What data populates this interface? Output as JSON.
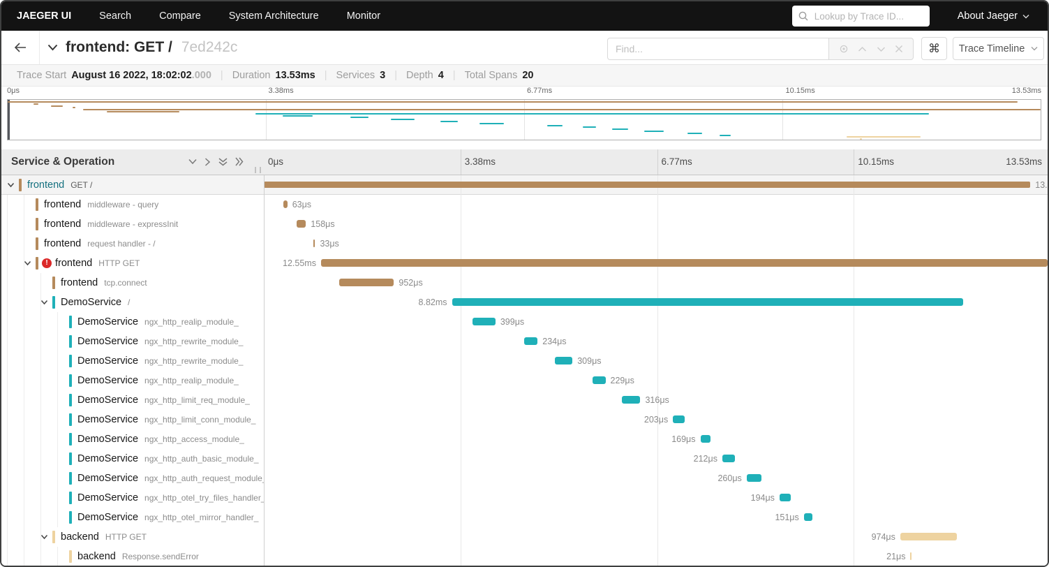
{
  "nav": {
    "brand": "JAEGER UI",
    "items": [
      "Search",
      "Compare",
      "System Architecture",
      "Monitor"
    ],
    "lookup_placeholder": "Lookup by Trace ID...",
    "about_label": "About Jaeger"
  },
  "header": {
    "title": "frontend: GET /",
    "trace_id": "7ed242c",
    "find_placeholder": "Find...",
    "find_tools_icons": [
      "locate-icon",
      "prev-match-icon",
      "next-match-icon",
      "clear-icon"
    ],
    "keyboard_shortcut_button": "⌘",
    "view_selector": "Trace Timeline"
  },
  "summary": {
    "items": [
      {
        "label": "Trace Start",
        "value": "August 16 2022, 18:02:02",
        "suffix": ".000"
      },
      {
        "label": "Duration",
        "value": "13.53ms"
      },
      {
        "label": "Services",
        "value": "3"
      },
      {
        "label": "Depth",
        "value": "4"
      },
      {
        "label": "Total Spans",
        "value": "20"
      }
    ]
  },
  "timeline": {
    "left_header": "Service & Operation",
    "ticks": [
      "0μs",
      "3.38ms",
      "6.77ms",
      "10.15ms",
      "13.53ms"
    ],
    "tick_pcts": [
      0,
      25,
      50,
      75,
      100
    ]
  },
  "colors": {
    "frontend": "#b58a5c",
    "demo": "#1fb0b8",
    "backend": "#eed3a0",
    "error": "#db2828",
    "root_service_text": "#14707f"
  },
  "spans": [
    {
      "service": "frontend",
      "operation": "GET /",
      "level": 0,
      "expander": true,
      "error": false,
      "color": "frontend",
      "start": 0,
      "width": 97.8,
      "duration": "13.",
      "side": "right",
      "root": true
    },
    {
      "service": "frontend",
      "operation": "middleware - query",
      "level": 1,
      "expander": false,
      "error": false,
      "color": "frontend",
      "start": 2.5,
      "width": 0.5,
      "duration": "63μs",
      "side": "right"
    },
    {
      "service": "frontend",
      "operation": "middleware - expressInit",
      "level": 1,
      "expander": false,
      "error": false,
      "color": "frontend",
      "start": 4.2,
      "width": 1.17,
      "duration": "158μs",
      "side": "right"
    },
    {
      "service": "frontend",
      "operation": "request handler - /",
      "level": 1,
      "expander": false,
      "error": false,
      "color": "frontend",
      "start": 6.3,
      "width": 0.24,
      "duration": "33μs",
      "side": "right"
    },
    {
      "service": "frontend",
      "operation": "HTTP GET",
      "level": 1,
      "expander": true,
      "error": true,
      "color": "frontend",
      "start": 7.3,
      "width": 92.7,
      "duration": "12.55ms",
      "side": "left"
    },
    {
      "service": "frontend",
      "operation": "tcp.connect",
      "level": 2,
      "expander": false,
      "error": false,
      "color": "frontend",
      "start": 9.6,
      "width": 7.0,
      "duration": "952μs",
      "side": "right"
    },
    {
      "service": "DemoService",
      "operation": "/",
      "level": 2,
      "expander": true,
      "error": false,
      "color": "demo",
      "start": 24.0,
      "width": 65.2,
      "duration": "8.82ms",
      "side": "left"
    },
    {
      "service": "DemoService",
      "operation": "ngx_http_realip_module_",
      "level": 3,
      "expander": false,
      "error": false,
      "color": "demo",
      "start": 26.6,
      "width": 2.95,
      "duration": "399μs",
      "side": "right"
    },
    {
      "service": "DemoService",
      "operation": "ngx_http_rewrite_module_",
      "level": 3,
      "expander": false,
      "error": false,
      "color": "demo",
      "start": 33.2,
      "width": 1.73,
      "duration": "234μs",
      "side": "right"
    },
    {
      "service": "DemoService",
      "operation": "ngx_http_rewrite_module_",
      "level": 3,
      "expander": false,
      "error": false,
      "color": "demo",
      "start": 37.1,
      "width": 2.28,
      "duration": "309μs",
      "side": "right"
    },
    {
      "service": "DemoService",
      "operation": "ngx_http_realip_module_",
      "level": 3,
      "expander": false,
      "error": false,
      "color": "demo",
      "start": 41.9,
      "width": 1.69,
      "duration": "229μs",
      "side": "right"
    },
    {
      "service": "DemoService",
      "operation": "ngx_http_limit_req_module_",
      "level": 3,
      "expander": false,
      "error": false,
      "color": "demo",
      "start": 45.7,
      "width": 2.34,
      "duration": "316μs",
      "side": "right"
    },
    {
      "service": "DemoService",
      "operation": "ngx_http_limit_conn_module_",
      "level": 3,
      "expander": false,
      "error": false,
      "color": "demo",
      "start": 52.2,
      "width": 1.5,
      "duration": "203μs",
      "side": "left"
    },
    {
      "service": "DemoService",
      "operation": "ngx_http_access_module_",
      "level": 3,
      "expander": false,
      "error": false,
      "color": "demo",
      "start": 55.7,
      "width": 1.25,
      "duration": "169μs",
      "side": "left"
    },
    {
      "service": "DemoService",
      "operation": "ngx_http_auth_basic_module_",
      "level": 3,
      "expander": false,
      "error": false,
      "color": "demo",
      "start": 58.5,
      "width": 1.57,
      "duration": "212μs",
      "side": "left"
    },
    {
      "service": "DemoService",
      "operation": "ngx_http_auth_request_module_",
      "level": 3,
      "expander": false,
      "error": false,
      "color": "demo",
      "start": 61.6,
      "width": 1.92,
      "duration": "260μs",
      "side": "left"
    },
    {
      "service": "DemoService",
      "operation": "ngx_http_otel_try_files_handler_",
      "level": 3,
      "expander": false,
      "error": false,
      "color": "demo",
      "start": 65.8,
      "width": 1.43,
      "duration": "194μs",
      "side": "left"
    },
    {
      "service": "DemoService",
      "operation": "ngx_http_otel_mirror_handler_",
      "level": 3,
      "expander": false,
      "error": false,
      "color": "demo",
      "start": 68.9,
      "width": 1.12,
      "duration": "151μs",
      "side": "left"
    },
    {
      "service": "backend",
      "operation": "HTTP GET",
      "level": 2,
      "expander": true,
      "error": false,
      "color": "backend",
      "start": 81.2,
      "width": 7.2,
      "duration": "974μs",
      "side": "left"
    },
    {
      "service": "backend",
      "operation": "Response.sendError",
      "level": 3,
      "expander": false,
      "error": false,
      "color": "backend",
      "start": 82.5,
      "width": 0.16,
      "duration": "21μs",
      "side": "left"
    }
  ]
}
